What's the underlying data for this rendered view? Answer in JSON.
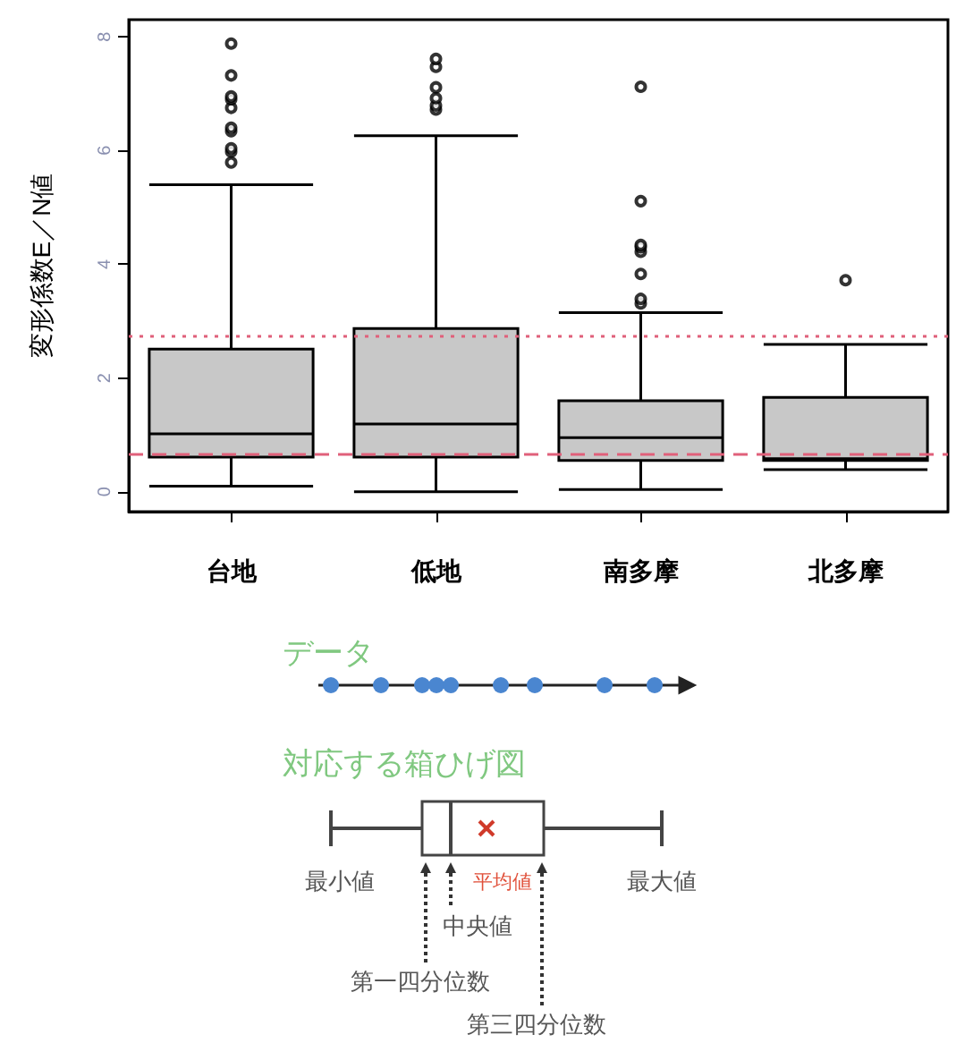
{
  "chart_data": {
    "type": "box",
    "categories": [
      "台地",
      "低地",
      "南多摩",
      "北多摩"
    ],
    "ylabel": "変形係数E／N値",
    "ylim": [
      -0.35,
      8.3
    ],
    "yticks": [
      0,
      2,
      4,
      6,
      8
    ],
    "grid": false,
    "marker": "circle",
    "series": [
      {
        "color": "#c8c8c8",
        "boxes": [
          {
            "low": 0.1,
            "q1": 0.61,
            "median": 1.02,
            "q3": 2.51,
            "high": 5.4,
            "outliers": [
              5.79,
              5.98,
              6.04,
              6.34,
              6.4,
              6.75,
              6.9,
              6.95,
              7.32,
              7.88
            ]
          },
          {
            "low": 0.0,
            "q1": 0.61,
            "median": 1.19,
            "q3": 2.87,
            "high": 6.26,
            "outliers": [
              6.72,
              6.79,
              6.92,
              7.11,
              7.47,
              7.61
            ]
          },
          {
            "low": 0.04,
            "q1": 0.55,
            "median": 0.95,
            "q3": 1.6,
            "high": 3.15,
            "outliers": [
              3.31,
              3.39,
              3.83,
              4.22,
              4.3,
              4.34,
              5.11,
              7.12
            ]
          },
          {
            "low": 0.39,
            "q1": 0.55,
            "median": 0.58,
            "q3": 1.66,
            "high": 2.59,
            "outliers": [
              3.72
            ]
          }
        ]
      }
    ],
    "ref_lines": [
      {
        "axis": "y",
        "value": 2.73,
        "color": "#e0607a",
        "line_style": "dotted"
      },
      {
        "axis": "y",
        "value": 0.67,
        "color": "#e0607a",
        "line_style": "dashed"
      }
    ],
    "annotations": [
      "データ",
      "対応する箱ひげ図",
      "最小値",
      "平均値",
      "最大値",
      "中央値",
      "第一四分位数",
      "第三四分位数"
    ]
  }
}
